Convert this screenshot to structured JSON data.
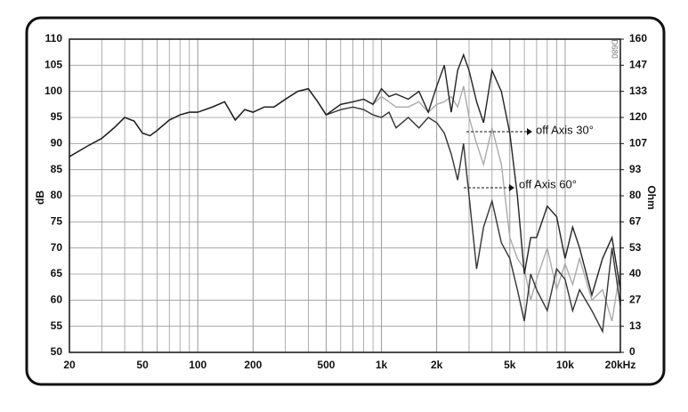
{
  "chart_data": {
    "type": "line",
    "log_x": true,
    "xlim": [
      20,
      20000
    ],
    "xticks": [
      20,
      50,
      100,
      200,
      500,
      {
        "value": 1000,
        "label": "1k"
      },
      {
        "value": 2000,
        "label": "2k"
      },
      {
        "value": 5000,
        "label": "5k"
      },
      {
        "value": 10000,
        "label": "10k"
      },
      {
        "value": 20000,
        "label": "20kHz"
      }
    ],
    "ylim": [
      50,
      110
    ],
    "yticks": [
      50,
      55,
      60,
      65,
      70,
      75,
      80,
      85,
      90,
      95,
      100,
      105,
      110
    ],
    "ylabel": "dB",
    "y2lim": [
      0,
      160
    ],
    "y2ticks": [
      0,
      {
        "value": 13.33,
        "label": "13"
      },
      {
        "value": 26.67,
        "label": "27"
      },
      40,
      {
        "value": 53.33,
        "label": "53"
      },
      {
        "value": 66.67,
        "label": "67"
      },
      80,
      {
        "value": 93.33,
        "label": "93"
      },
      {
        "value": 106.67,
        "label": "107"
      },
      120,
      {
        "value": 133.33,
        "label": "133"
      },
      {
        "value": 146.67,
        "label": "147"
      },
      160
    ],
    "y2label": "Ohm",
    "grid": true,
    "code": "D680",
    "annotations": [
      "off Axis 30°",
      "off Axis 60°"
    ],
    "x": [
      20,
      25,
      30,
      35,
      40,
      45,
      50,
      55,
      60,
      70,
      80,
      90,
      100,
      120,
      140,
      160,
      180,
      200,
      230,
      260,
      300,
      350,
      400,
      450,
      500,
      600,
      700,
      800,
      900,
      1000,
      1100,
      1200,
      1400,
      1600,
      1800,
      2000,
      2200,
      2400,
      2600,
      2800,
      3000,
      3300,
      3600,
      4000,
      4500,
      5000,
      5500,
      6000,
      6500,
      7000,
      8000,
      9000,
      10000,
      11000,
      12000,
      14000,
      16000,
      18000,
      20000
    ],
    "series": [
      {
        "color": "#222222",
        "values": [
          87.5,
          89.5,
          91,
          93,
          95,
          94.3,
          92,
          91.5,
          92.5,
          94.5,
          95.5,
          96,
          96,
          97,
          98,
          94.5,
          96.5,
          96,
          97,
          97,
          98.5,
          100,
          100.5,
          98,
          95.5,
          97.5,
          98,
          98.5,
          97.5,
          100.5,
          99,
          99.5,
          98.5,
          100,
          96,
          101,
          105,
          96,
          104,
          107,
          104,
          98,
          94,
          104,
          100,
          92,
          80,
          65,
          72,
          72,
          78,
          76,
          68,
          74,
          70,
          61,
          68,
          72,
          62
        ]
      },
      {
        "color": "#aaaaaa",
        "values": [
          87.5,
          89.5,
          91,
          93,
          95,
          94.3,
          92,
          91.5,
          92.5,
          94.5,
          95.5,
          96,
          96,
          97,
          98,
          94.5,
          96.5,
          96,
          97,
          97,
          98.5,
          100,
          100.5,
          98,
          95.5,
          97.5,
          98,
          98.5,
          97.5,
          99,
          98,
          97,
          97,
          98,
          96,
          97.5,
          98,
          99,
          97,
          101,
          95,
          90,
          86,
          93,
          86,
          72,
          68,
          66,
          60,
          64,
          70,
          62,
          67,
          63,
          68,
          60,
          62,
          56,
          66
        ]
      },
      {
        "color": "#333333",
        "values": [
          87.5,
          89.5,
          91,
          93,
          95,
          94.3,
          92,
          91.5,
          92.5,
          94.5,
          95.5,
          96,
          96,
          97,
          98,
          94.5,
          96.5,
          96,
          97,
          97,
          98.5,
          100,
          100.5,
          98,
          95.5,
          96.5,
          97,
          96.5,
          95.5,
          95,
          96,
          93,
          95,
          93,
          95,
          94,
          92,
          88,
          83,
          90,
          80,
          66,
          74,
          79,
          71,
          68,
          62,
          56,
          65,
          62,
          58,
          66,
          64,
          58,
          62,
          58,
          54,
          70,
          59
        ]
      }
    ]
  }
}
